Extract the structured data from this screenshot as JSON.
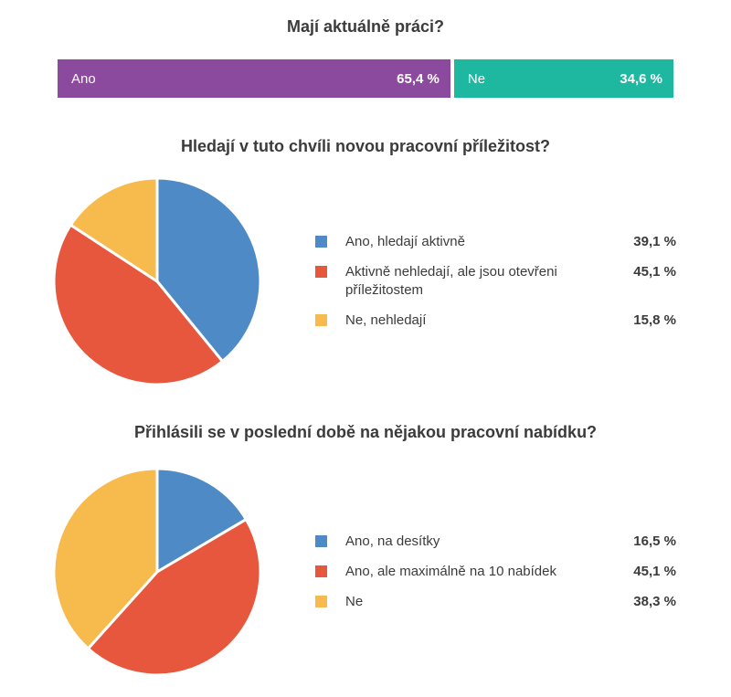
{
  "chart_data": [
    {
      "type": "bar",
      "variant": "horizontal-stacked",
      "title": "Mají aktuálně práci?",
      "categories": [
        "Ano",
        "Ne"
      ],
      "values": [
        65.4,
        34.6
      ],
      "value_labels": [
        "65,4 %",
        "34,6 %"
      ],
      "colors": [
        "#8c4a9e",
        "#1eb8a1"
      ],
      "labels_position": "inside-bar",
      "total": 100
    },
    {
      "type": "pie",
      "title": "Hledají v tuto chvíli novou pracovní příležitost?",
      "categories": [
        "Ano, hledají aktivně",
        "Aktivně nehledají, ale jsou otevřeni příležitostem",
        "Ne, nehledají"
      ],
      "values": [
        39.1,
        45.1,
        15.8
      ],
      "value_labels": [
        "39,1 %",
        "45,1 %",
        "15,8 %"
      ],
      "colors": [
        "#4e8bc6",
        "#e7573d",
        "#f7ba4d"
      ],
      "start_angle_deg": 0,
      "direction": "clockwise",
      "legend_position": "right"
    },
    {
      "type": "pie",
      "title": "Přihlásili se v poslední době na nějakou pracovní nabídku?",
      "categories": [
        "Ano, na desítky",
        "Ano, ale maximálně na 10 nabídek",
        "Ne"
      ],
      "values": [
        16.5,
        45.1,
        38.3
      ],
      "value_labels": [
        "16,5 %",
        "45,1 %",
        "38,3 %"
      ],
      "colors": [
        "#4e8bc6",
        "#e7573d",
        "#f7ba4d"
      ],
      "start_angle_deg": 0,
      "direction": "clockwise",
      "legend_position": "right"
    }
  ],
  "style": {
    "text_color": "#3b3b3b",
    "slice_separator_color": "#ffffff"
  }
}
